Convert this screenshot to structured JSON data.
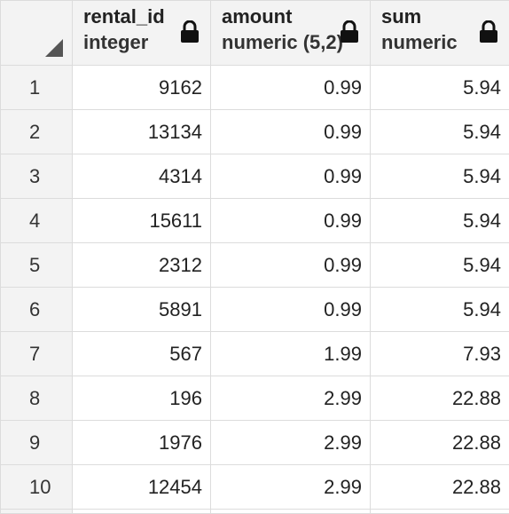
{
  "columns": [
    {
      "name": "rental_id",
      "type": "integer",
      "icon": "lock-icon"
    },
    {
      "name": "amount",
      "type": "numeric (5,2)",
      "icon": "lock-icon"
    },
    {
      "name": "sum",
      "type": "numeric",
      "icon": "lock-icon"
    }
  ],
  "rows": [
    {
      "num": "1",
      "rental_id": "9162",
      "amount": "0.99",
      "sum": "5.94"
    },
    {
      "num": "2",
      "rental_id": "13134",
      "amount": "0.99",
      "sum": "5.94"
    },
    {
      "num": "3",
      "rental_id": "4314",
      "amount": "0.99",
      "sum": "5.94"
    },
    {
      "num": "4",
      "rental_id": "15611",
      "amount": "0.99",
      "sum": "5.94"
    },
    {
      "num": "5",
      "rental_id": "2312",
      "amount": "0.99",
      "sum": "5.94"
    },
    {
      "num": "6",
      "rental_id": "5891",
      "amount": "0.99",
      "sum": "5.94"
    },
    {
      "num": "7",
      "rental_id": "567",
      "amount": "1.99",
      "sum": "7.93"
    },
    {
      "num": "8",
      "rental_id": "196",
      "amount": "2.99",
      "sum": "22.88"
    },
    {
      "num": "9",
      "rental_id": "1976",
      "amount": "2.99",
      "sum": "22.88"
    },
    {
      "num": "10",
      "rental_id": "12454",
      "amount": "2.99",
      "sum": "22.88"
    }
  ]
}
